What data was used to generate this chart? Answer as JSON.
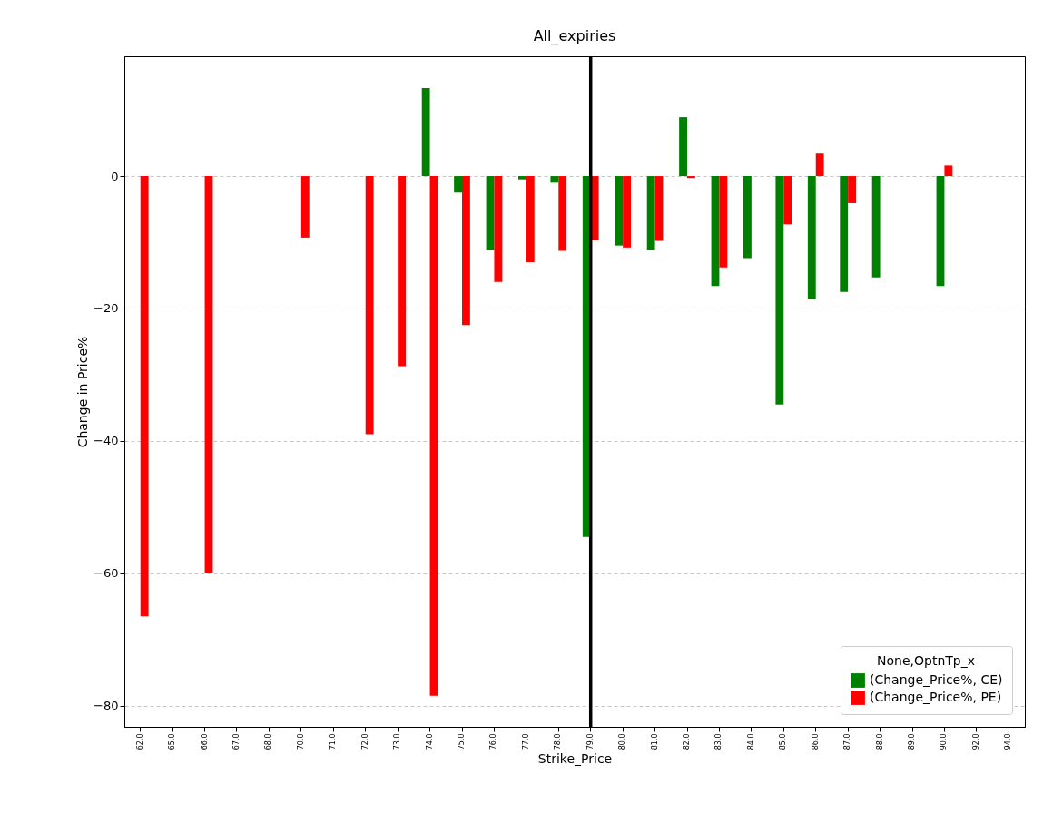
{
  "chart_data": {
    "type": "bar",
    "title": "All_expiries",
    "xlabel": "Strike_Price",
    "ylabel": "Change in Price%",
    "legend_title": "None,OptnTp_x",
    "categories": [
      "62.0",
      "65.0",
      "66.0",
      "67.0",
      "68.0",
      "70.0",
      "71.0",
      "72.0",
      "73.0",
      "74.0",
      "75.0",
      "76.0",
      "77.0",
      "78.0",
      "79.0",
      "80.0",
      "81.0",
      "82.0",
      "83.0",
      "84.0",
      "85.0",
      "86.0",
      "87.0",
      "88.0",
      "89.0",
      "90.0",
      "92.0",
      "94.0"
    ],
    "series": [
      {
        "name": "(Change_Price%, CE)",
        "color": "#008000",
        "values": [
          null,
          null,
          null,
          null,
          null,
          null,
          null,
          null,
          null,
          13.3,
          -2.5,
          -11.2,
          -0.5,
          -1,
          -54.5,
          -10.5,
          -11.2,
          8.9,
          -16.6,
          -12.4,
          -34.5,
          -18.5,
          -17.5,
          -15.3,
          null,
          -16.6,
          null,
          null
        ]
      },
      {
        "name": "(Change_Price%, PE)",
        "color": "#ff0000",
        "values": [
          -66.5,
          null,
          -60,
          null,
          null,
          -9.3,
          null,
          -39,
          -28.7,
          -78.5,
          -22.5,
          -16,
          -13,
          -11.3,
          -9.7,
          -10.8,
          -9.8,
          -0.3,
          -13.8,
          null,
          -7.3,
          3.4,
          -4.1,
          null,
          null,
          1.6,
          null,
          null
        ]
      }
    ],
    "ylim": [
      -83.2,
      18.1
    ],
    "yticks": [
      -80,
      -60,
      -40,
      -20,
      0
    ],
    "grid": "y",
    "legend": "bottom right",
    "ref_lines": [
      {
        "axis": "x",
        "value": "79.0",
        "color": "#000000"
      }
    ]
  }
}
